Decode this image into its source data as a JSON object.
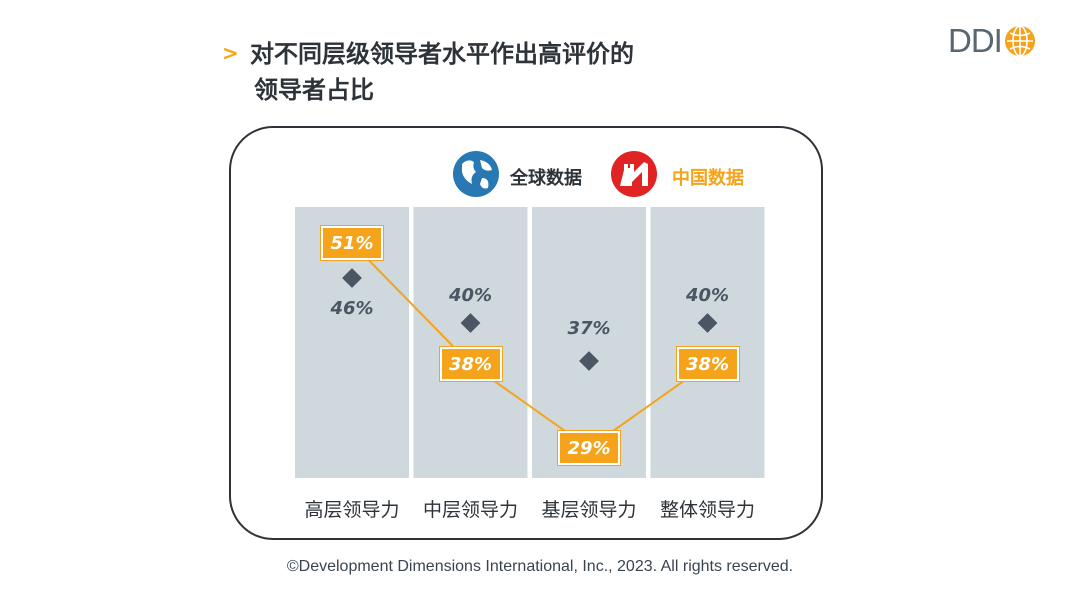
{
  "title": {
    "arrow": ">",
    "line1": "对不同层级领导者水平作出高评价的",
    "line2": "领导者占比"
  },
  "logo": {
    "text": "DDI"
  },
  "legend": {
    "global": "全球数据",
    "china": "中国数据"
  },
  "colors": {
    "china": "#f5a31a",
    "global_marker": "#4a5663",
    "column_bg": "#cfd8dc",
    "text": "#2d3339",
    "china_icon_red": "#e02424",
    "globe_blue": "#2878b4"
  },
  "chart_data": {
    "type": "line",
    "title": "对不同层级领导者水平作出高评价的领导者占比",
    "categories": [
      "高层领导力",
      "中层领导力",
      "基层领导力",
      "整体领导力"
    ],
    "series": [
      {
        "name": "全球数据",
        "values": [
          46,
          40,
          37,
          40
        ],
        "labels": [
          "46%",
          "40%",
          "37%",
          "40%"
        ],
        "marker": "diamond"
      },
      {
        "name": "中国数据",
        "values": [
          51,
          38,
          29,
          38
        ],
        "labels": [
          "51%",
          "38%",
          "29%",
          "38%"
        ],
        "marker": "box"
      }
    ],
    "ylim": [
      25,
      55
    ],
    "xlabel": "",
    "ylabel": ""
  },
  "copyright": "©Development Dimensions International, Inc., 2023. All rights reserved."
}
